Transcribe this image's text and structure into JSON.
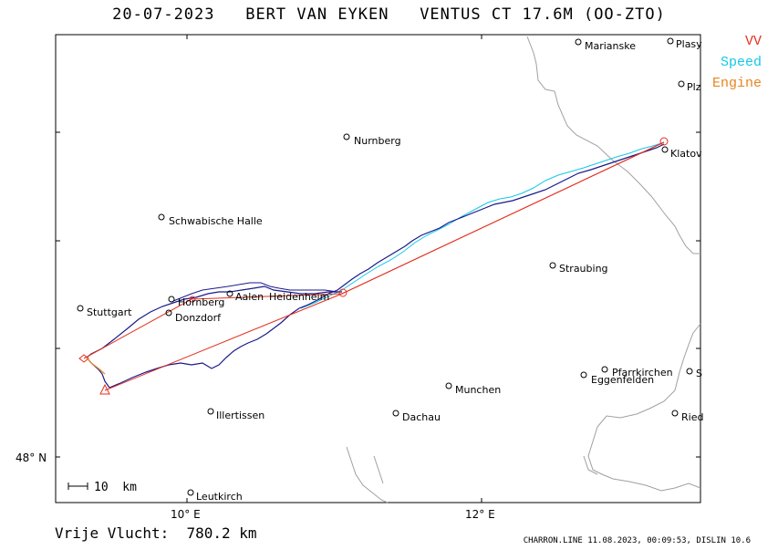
{
  "header": {
    "title": "20-07-2023   BERT VAN EYKEN   VENTUS CT 17.6M (OO-ZTO)"
  },
  "legend": {
    "vv": "VV",
    "speed": "Speed",
    "engine": "Engine"
  },
  "colors": {
    "track": "#1a1a8c",
    "speed": "#14c8e6",
    "vv": "#e53020",
    "engine": "#e88520",
    "border": "#a0a0a0"
  },
  "map": {
    "axis_x_labels": [
      "10° E",
      "12° E"
    ],
    "axis_y_labels": [
      "48° N"
    ],
    "scale_label": "10  km",
    "cities": [
      {
        "name": "Marianske"
      },
      {
        "name": "Plasy"
      },
      {
        "name": "Plz"
      },
      {
        "name": "Nurnberg"
      },
      {
        "name": "Klatov"
      },
      {
        "name": "Schwabische Halle"
      },
      {
        "name": "Straubing"
      },
      {
        "name": "Aalen"
      },
      {
        "name": "Heidenheim"
      },
      {
        "name": "Hornberg"
      },
      {
        "name": "Stuttgart"
      },
      {
        "name": "Donzdorf"
      },
      {
        "name": "Pfarrkirchen"
      },
      {
        "name": "Eggenfelden"
      },
      {
        "name": "S"
      },
      {
        "name": "Munchen"
      },
      {
        "name": "Illertissen"
      },
      {
        "name": "Dachau"
      },
      {
        "name": "Ried"
      },
      {
        "name": "Leutkirch"
      }
    ]
  },
  "footer": {
    "distance_label": "Vrije Vlucht:",
    "distance_value": "780.2 km",
    "credit": "CHARRON.LINE 11.08.2023, 00:09:53, DISLIN 10.6"
  }
}
